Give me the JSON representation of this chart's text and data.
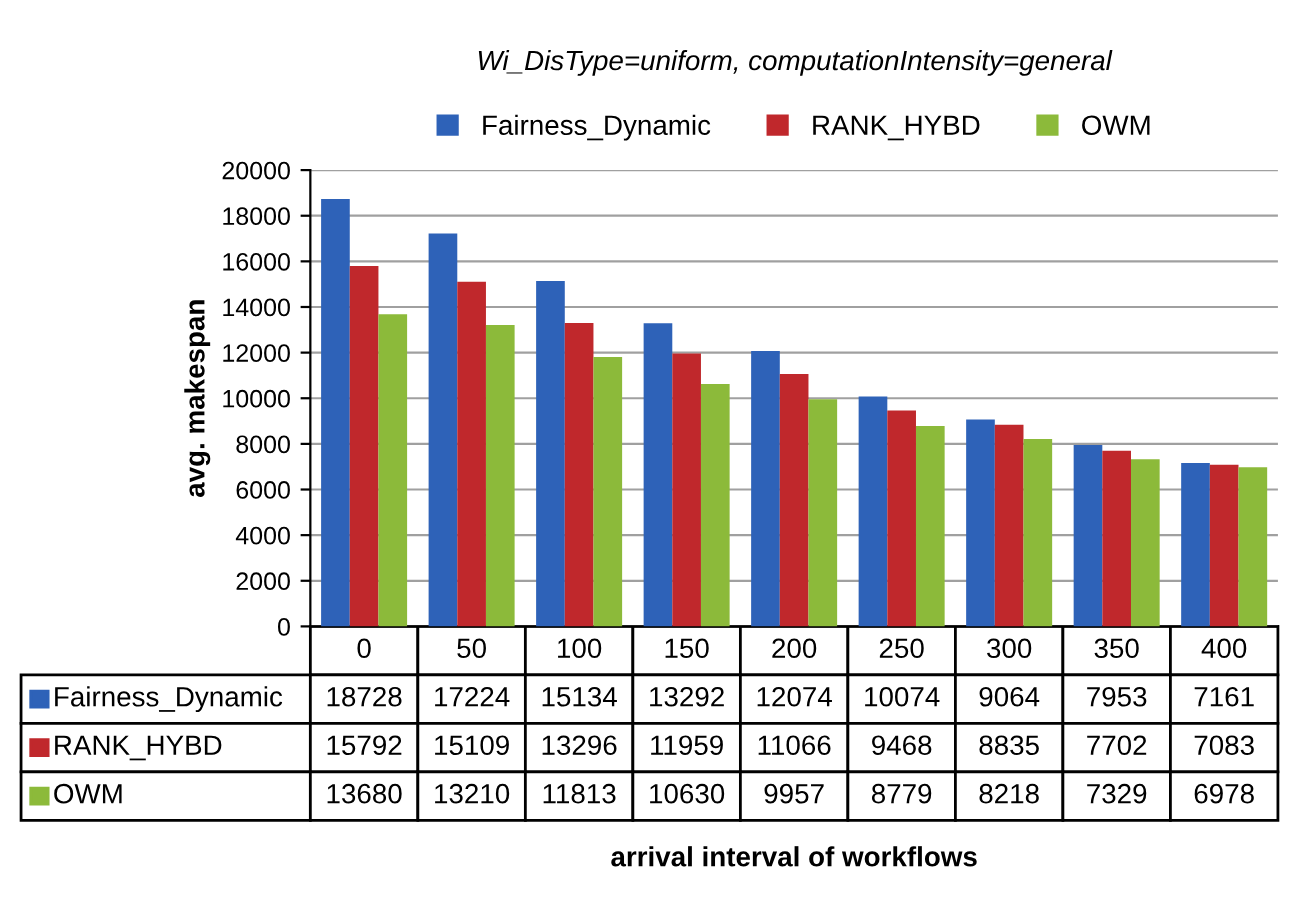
{
  "chart_data": {
    "type": "bar",
    "title": "Wi_DisType=uniform, computationIntensity=general",
    "annotations": [
      "arrival interval of workflows"
    ],
    "ylabel": "avg. makespan",
    "categories": [
      "0",
      "50",
      "100",
      "150",
      "200",
      "250",
      "300",
      "350",
      "400"
    ],
    "series": [
      {
        "name": "Fairness_Dynamic",
        "color": "#2e62b8",
        "values": [
          18728,
          17224,
          15134,
          13292,
          12074,
          10074,
          9064,
          7953,
          7161
        ]
      },
      {
        "name": "RANK_HYBD",
        "color": "#c0282c",
        "values": [
          15792,
          15109,
          13296,
          11959,
          11066,
          9468,
          8835,
          7702,
          7083
        ]
      },
      {
        "name": "OWM",
        "color": "#8cba3a",
        "values": [
          13680,
          13210,
          11813,
          10630,
          9957,
          8779,
          8218,
          7329,
          6978
        ]
      }
    ],
    "ylim": [
      0,
      20000
    ],
    "yticks": [
      0,
      2000,
      4000,
      6000,
      8000,
      10000,
      12000,
      14000,
      16000,
      18000,
      20000
    ],
    "grid": "y",
    "legend": "top",
    "data_labels": true
  }
}
